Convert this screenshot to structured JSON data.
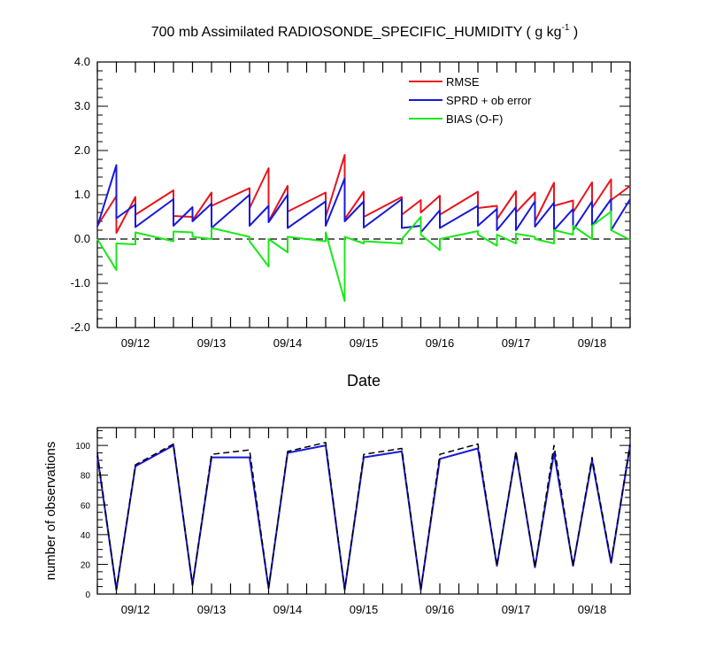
{
  "chart_data": [
    {
      "type": "line",
      "title_main": "700 mb Assimilated RADIOSONDE_SPECIFIC_HUMIDITY ( g kg",
      "title_sup": "-1",
      "title_end": " )",
      "xlabel": "Date",
      "ylabel": "",
      "ylim": [
        -2.0,
        4.0
      ],
      "xlim": [
        0,
        7.0
      ],
      "yticks": [
        "-2.0",
        "-1.0",
        "0.0",
        "1.0",
        "2.0",
        "3.0",
        "4.0"
      ],
      "ytick_values": [
        -2,
        -1,
        0,
        1,
        2,
        3,
        4
      ],
      "xtick_labels": [
        "09/12",
        "09/13",
        "09/14",
        "09/15",
        "09/16",
        "09/17",
        "09/18"
      ],
      "xtick_positions": [
        0.5,
        1.5,
        2.5,
        3.5,
        4.5,
        5.5,
        6.5
      ],
      "zero_line": true,
      "legend_position": "top-right",
      "series": [
        {
          "name": "RMSE",
          "color": "#e8141c",
          "points": [
            [
              0,
              0.3
            ],
            [
              0.25,
              0.97
            ],
            [
              0.25,
              0.14
            ],
            [
              0.5,
              0.95
            ],
            [
              0.5,
              0.55
            ],
            [
              1.0,
              1.1
            ],
            [
              1.0,
              0.52
            ],
            [
              1.25,
              0.5
            ],
            [
              1.25,
              0.42
            ],
            [
              1.5,
              1.05
            ],
            [
              1.5,
              0.75
            ],
            [
              2.0,
              1.15
            ],
            [
              2.0,
              0.7
            ],
            [
              2.25,
              1.6
            ],
            [
              2.25,
              0.4
            ],
            [
              2.5,
              1.2
            ],
            [
              2.5,
              0.62
            ],
            [
              3.0,
              1.05
            ],
            [
              3.0,
              0.5
            ],
            [
              3.25,
              1.9
            ],
            [
              3.25,
              0.45
            ],
            [
              3.5,
              1.07
            ],
            [
              3.5,
              0.5
            ],
            [
              4.0,
              0.95
            ],
            [
              4.0,
              0.55
            ],
            [
              4.25,
              0.88
            ],
            [
              4.25,
              0.6
            ],
            [
              4.5,
              0.98
            ],
            [
              4.5,
              0.55
            ],
            [
              5.0,
              1.07
            ],
            [
              5.0,
              0.7
            ],
            [
              5.25,
              0.75
            ],
            [
              5.25,
              0.45
            ],
            [
              5.5,
              1.08
            ],
            [
              5.5,
              0.6
            ],
            [
              5.75,
              1.05
            ],
            [
              5.75,
              0.4
            ],
            [
              6.0,
              1.27
            ],
            [
              6.0,
              0.75
            ],
            [
              6.25,
              0.87
            ],
            [
              6.25,
              0.6
            ],
            [
              6.5,
              1.28
            ],
            [
              6.5,
              0.7
            ],
            [
              6.75,
              1.35
            ],
            [
              6.75,
              0.88
            ],
            [
              7.0,
              1.2
            ]
          ]
        },
        {
          "name": "SPRD + ob error",
          "color": "#1818d8",
          "points": [
            [
              0,
              0.28
            ],
            [
              0.25,
              1.67
            ],
            [
              0.25,
              0.47
            ],
            [
              0.5,
              0.78
            ],
            [
              0.5,
              0.27
            ],
            [
              1.0,
              0.9
            ],
            [
              1.0,
              0.3
            ],
            [
              1.25,
              0.72
            ],
            [
              1.25,
              0.4
            ],
            [
              1.5,
              0.8
            ],
            [
              1.5,
              0.25
            ],
            [
              2.0,
              1.0
            ],
            [
              2.0,
              0.3
            ],
            [
              2.25,
              0.75
            ],
            [
              2.25,
              0.38
            ],
            [
              2.5,
              1.0
            ],
            [
              2.5,
              0.25
            ],
            [
              3.0,
              0.85
            ],
            [
              3.0,
              0.3
            ],
            [
              3.25,
              1.37
            ],
            [
              3.25,
              0.4
            ],
            [
              3.5,
              0.85
            ],
            [
              3.5,
              0.26
            ],
            [
              4.0,
              0.9
            ],
            [
              4.0,
              0.25
            ],
            [
              4.25,
              0.3
            ],
            [
              4.25,
              0.15
            ],
            [
              4.5,
              0.65
            ],
            [
              4.5,
              0.25
            ],
            [
              5.0,
              0.75
            ],
            [
              5.0,
              0.3
            ],
            [
              5.25,
              0.68
            ],
            [
              5.25,
              0.2
            ],
            [
              5.5,
              0.72
            ],
            [
              5.5,
              0.2
            ],
            [
              5.75,
              0.85
            ],
            [
              5.75,
              0.28
            ],
            [
              6.0,
              0.82
            ],
            [
              6.0,
              0.2
            ],
            [
              6.25,
              0.68
            ],
            [
              6.25,
              0.2
            ],
            [
              6.5,
              0.85
            ],
            [
              6.5,
              0.3
            ],
            [
              6.75,
              0.9
            ],
            [
              6.75,
              0.2
            ],
            [
              7.0,
              0.9
            ]
          ]
        },
        {
          "name": "BIAS (O-F)",
          "color": "#18e818",
          "points": [
            [
              0,
              0.0
            ],
            [
              0.25,
              -0.7
            ],
            [
              0.25,
              -0.1
            ],
            [
              0.5,
              -0.12
            ],
            [
              0.5,
              0.15
            ],
            [
              1.0,
              -0.05
            ],
            [
              1.0,
              0.17
            ],
            [
              1.25,
              0.15
            ],
            [
              1.25,
              0.05
            ],
            [
              1.5,
              0.0
            ],
            [
              1.5,
              0.25
            ],
            [
              2.0,
              0.05
            ],
            [
              2.0,
              -0.05
            ],
            [
              2.25,
              -0.62
            ],
            [
              2.25,
              0.0
            ],
            [
              2.5,
              -0.3
            ],
            [
              2.5,
              0.05
            ],
            [
              3.0,
              -0.05
            ],
            [
              3.0,
              0.15
            ],
            [
              3.25,
              -1.4
            ],
            [
              3.25,
              0.05
            ],
            [
              3.5,
              -0.1
            ],
            [
              3.5,
              -0.05
            ],
            [
              4.0,
              -0.1
            ],
            [
              4.0,
              0.0
            ],
            [
              4.25,
              0.5
            ],
            [
              4.25,
              0.1
            ],
            [
              4.5,
              -0.25
            ],
            [
              4.5,
              0.0
            ],
            [
              5.0,
              0.18
            ],
            [
              5.0,
              0.1
            ],
            [
              5.25,
              -0.15
            ],
            [
              5.25,
              0.1
            ],
            [
              5.5,
              -0.1
            ],
            [
              5.5,
              0.12
            ],
            [
              5.75,
              0.05
            ],
            [
              5.75,
              0.0
            ],
            [
              6.0,
              -0.1
            ],
            [
              6.0,
              0.2
            ],
            [
              6.25,
              0.1
            ],
            [
              6.25,
              0.3
            ],
            [
              6.5,
              0.0
            ],
            [
              6.5,
              0.3
            ],
            [
              6.75,
              0.62
            ],
            [
              6.75,
              0.2
            ],
            [
              7.0,
              -0.02
            ]
          ]
        }
      ]
    },
    {
      "type": "line",
      "title": "",
      "xlabel": "",
      "ylabel": "number of observations",
      "ylim": [
        0,
        112
      ],
      "xlim": [
        0,
        7.0
      ],
      "yticks": [
        "0",
        "20",
        "40",
        "60",
        "80",
        "100"
      ],
      "ytick_values": [
        0,
        20,
        40,
        60,
        80,
        100
      ],
      "xtick_labels": [
        "09/12",
        "09/13",
        "09/14",
        "09/15",
        "09/16",
        "09/17",
        "09/18"
      ],
      "xtick_positions": [
        0.5,
        1.5,
        2.5,
        3.5,
        4.5,
        5.5,
        6.5
      ],
      "series": [
        {
          "color": "#1818d8",
          "style": "solid",
          "points": [
            [
              0,
              93
            ],
            [
              0.25,
              3
            ],
            [
              0.5,
              86
            ],
            [
              1.0,
              100
            ],
            [
              1.25,
              6
            ],
            [
              1.5,
              92
            ],
            [
              2.0,
              92
            ],
            [
              2.25,
              4
            ],
            [
              2.5,
              95
            ],
            [
              3.0,
              100
            ],
            [
              3.25,
              3
            ],
            [
              3.5,
              92
            ],
            [
              4.0,
              96
            ],
            [
              4.25,
              3
            ],
            [
              4.5,
              91
            ],
            [
              5.0,
              98
            ],
            [
              5.25,
              19
            ],
            [
              5.5,
              95
            ],
            [
              5.75,
              18
            ],
            [
              6.0,
              95
            ],
            [
              6.25,
              19
            ],
            [
              6.5,
              90
            ],
            [
              6.75,
              21
            ],
            [
              7.0,
              100
            ]
          ]
        },
        {
          "color": "#000000",
          "style": "dashed",
          "points": [
            [
              0,
              95
            ],
            [
              0.25,
              3
            ],
            [
              0.5,
              87
            ],
            [
              1.0,
              101
            ],
            [
              1.25,
              6
            ],
            [
              1.5,
              94
            ],
            [
              2.0,
              97
            ],
            [
              2.25,
              4
            ],
            [
              2.5,
              96
            ],
            [
              3.0,
              102
            ],
            [
              3.25,
              3
            ],
            [
              3.5,
              94
            ],
            [
              4.0,
              98
            ],
            [
              4.25,
              3
            ],
            [
              4.5,
              94
            ],
            [
              5.0,
              101
            ],
            [
              5.25,
              19
            ],
            [
              5.5,
              96
            ],
            [
              5.75,
              18
            ],
            [
              6.0,
              100
            ],
            [
              6.25,
              19
            ],
            [
              6.5,
              92
            ],
            [
              6.75,
              22
            ],
            [
              7.0,
              101
            ]
          ]
        }
      ]
    }
  ]
}
